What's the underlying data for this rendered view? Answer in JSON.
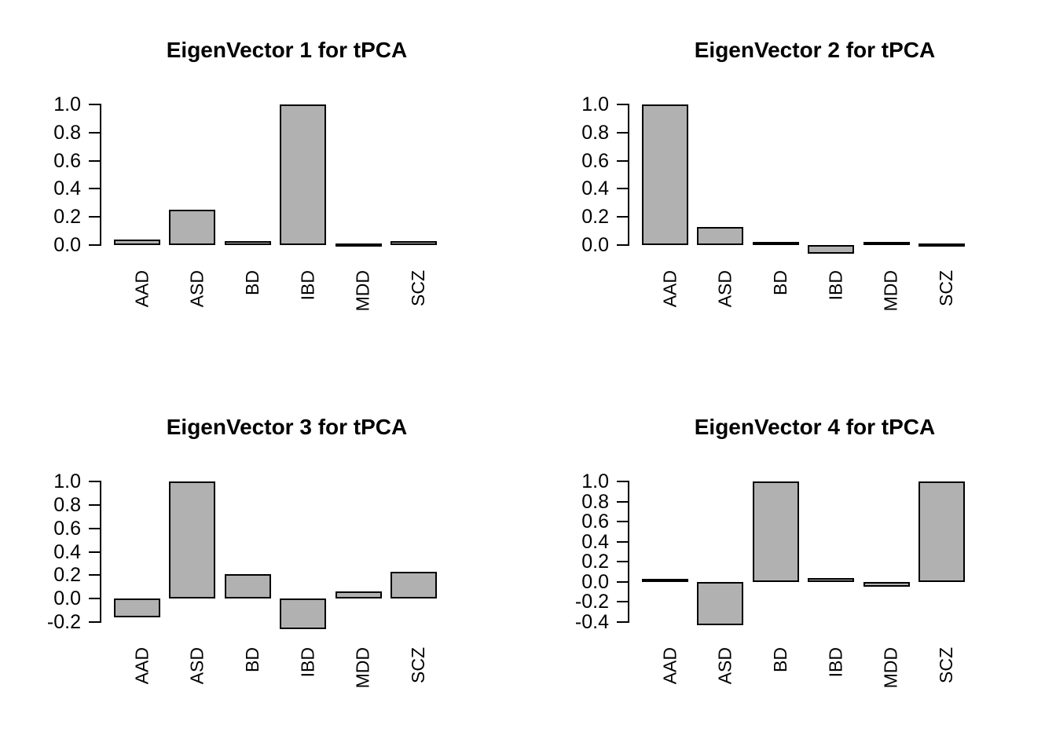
{
  "page": {
    "background": "#ffffff",
    "text_color": "#000000"
  },
  "style": {
    "bar_fill": "#b1b1b1",
    "bar_border": "#000000",
    "axis_color": "#000000"
  },
  "chart_data": [
    {
      "type": "bar",
      "title": "EigenVector 1 for tPCA",
      "categories": [
        "AAD",
        "ASD",
        "BD",
        "IBD",
        "MDD",
        "SCZ"
      ],
      "values": [
        0.04,
        0.25,
        0.03,
        1.0,
        0.01,
        0.03
      ],
      "xlabel": "",
      "ylabel": "",
      "ylim": [
        0,
        1.0
      ],
      "ytick_labels": [
        "1.0",
        "0.8",
        "0.6",
        "0.4",
        "0.2",
        "0.0"
      ],
      "grid": false,
      "legend": null
    },
    {
      "type": "bar",
      "title": "EigenVector 2 for tPCA",
      "categories": [
        "AAD",
        "ASD",
        "BD",
        "IBD",
        "MDD",
        "SCZ"
      ],
      "values": [
        1.0,
        0.13,
        0.02,
        -0.06,
        0.02,
        0.01
      ],
      "xlabel": "",
      "ylabel": "",
      "ylim": [
        0,
        1.0
      ],
      "ytick_labels": [
        "1.0",
        "0.8",
        "0.6",
        "0.4",
        "0.2",
        "0.0"
      ],
      "grid": false,
      "legend": null
    },
    {
      "type": "bar",
      "title": "EigenVector 3 for tPCA",
      "categories": [
        "AAD",
        "ASD",
        "BD",
        "IBD",
        "MDD",
        "SCZ"
      ],
      "values": [
        -0.16,
        1.0,
        0.21,
        -0.26,
        0.06,
        0.23
      ],
      "xlabel": "",
      "ylabel": "",
      "ylim": [
        -0.2,
        1.0
      ],
      "ytick_labels": [
        "1.0",
        "0.8",
        "0.6",
        "0.4",
        "0.2",
        "0.0",
        "-0.2"
      ],
      "grid": false,
      "legend": null
    },
    {
      "type": "bar",
      "title": "EigenVector 4 for tPCA",
      "categories": [
        "AAD",
        "ASD",
        "BD",
        "IBD",
        "MDD",
        "SCZ"
      ],
      "values": [
        0.03,
        -0.43,
        1.0,
        0.04,
        -0.05,
        1.0
      ],
      "xlabel": "",
      "ylabel": "",
      "ylim": [
        -0.4,
        1.0
      ],
      "ytick_labels": [
        "1.0",
        "0.8",
        "0.6",
        "0.4",
        "0.2",
        "0.0",
        "-0.2",
        "-0.4"
      ],
      "grid": false,
      "legend": null
    }
  ]
}
